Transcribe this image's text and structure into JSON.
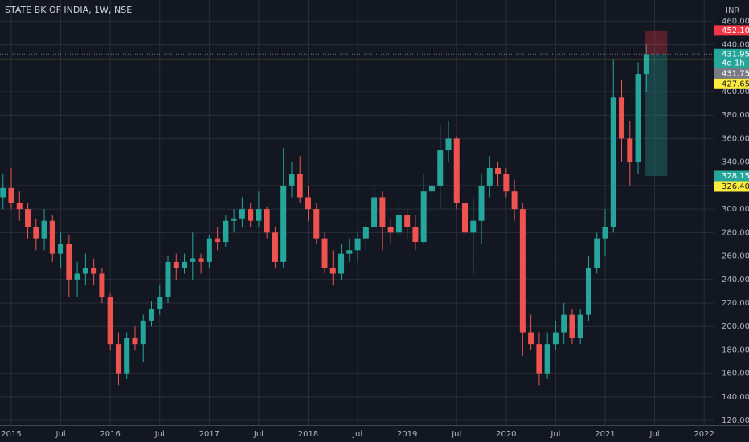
{
  "chart_data": {
    "type": "candlestick",
    "title": "STATE BK OF INDIA, 1W, NSE",
    "currency": "INR",
    "x": [
      "2014-12",
      "2015-01",
      "2015-02",
      "2015-03",
      "2015-04",
      "2015-05",
      "2015-06",
      "2015-07",
      "2015-08",
      "2015-09",
      "2015-10",
      "2015-11",
      "2015-12",
      "2016-01",
      "2016-02",
      "2016-03",
      "2016-04",
      "2016-05",
      "2016-06",
      "2016-07",
      "2016-08",
      "2016-09",
      "2016-10",
      "2016-11",
      "2016-12",
      "2017-01",
      "2017-02",
      "2017-03",
      "2017-04",
      "2017-05",
      "2017-06",
      "2017-07",
      "2017-08",
      "2017-09",
      "2017-10",
      "2017-11",
      "2017-12",
      "2018-01",
      "2018-02",
      "2018-03",
      "2018-04",
      "2018-05",
      "2018-06",
      "2018-07",
      "2018-08",
      "2018-09",
      "2018-10",
      "2018-11",
      "2018-12",
      "2019-01",
      "2019-02",
      "2019-03",
      "2019-04",
      "2019-05",
      "2019-06",
      "2019-07",
      "2019-08",
      "2019-09",
      "2019-10",
      "2019-11",
      "2019-12",
      "2020-01",
      "2020-02",
      "2020-03",
      "2020-04",
      "2020-05",
      "2020-06",
      "2020-07",
      "2020-08",
      "2020-09",
      "2020-10",
      "2020-11",
      "2020-12",
      "2021-01",
      "2021-02",
      "2021-03",
      "2021-04",
      "2021-05",
      "2021-06"
    ],
    "open": [
      310,
      318,
      305,
      300,
      285,
      275,
      290,
      262,
      270,
      240,
      245,
      250,
      245,
      225,
      185,
      160,
      190,
      185,
      205,
      215,
      225,
      255,
      250,
      255,
      258,
      255,
      275,
      272,
      290,
      292,
      300,
      290,
      300,
      280,
      255,
      320,
      330,
      310,
      300,
      275,
      250,
      245,
      262,
      265,
      275,
      285,
      310,
      285,
      280,
      295,
      285,
      272,
      315,
      320,
      350,
      360,
      305,
      280,
      290,
      320,
      335,
      330,
      315,
      300,
      195,
      185,
      160,
      185,
      195,
      210,
      190,
      210,
      250,
      275,
      285,
      395,
      360,
      340,
      415
    ],
    "high": [
      330,
      335,
      315,
      305,
      292,
      300,
      295,
      280,
      278,
      255,
      262,
      258,
      250,
      228,
      195,
      195,
      200,
      210,
      222,
      235,
      260,
      262,
      262,
      280,
      262,
      278,
      285,
      295,
      300,
      310,
      305,
      315,
      302,
      285,
      352,
      340,
      345,
      320,
      305,
      280,
      265,
      270,
      275,
      280,
      290,
      320,
      315,
      292,
      305,
      300,
      295,
      330,
      335,
      372,
      375,
      362,
      310,
      310,
      330,
      345,
      340,
      335,
      325,
      305,
      210,
      195,
      195,
      205,
      220,
      215,
      215,
      260,
      280,
      300,
      427,
      410,
      375,
      425,
      440
    ],
    "low": [
      300,
      300,
      290,
      275,
      265,
      265,
      255,
      250,
      225,
      225,
      235,
      235,
      220,
      180,
      150,
      155,
      180,
      170,
      200,
      210,
      220,
      240,
      245,
      240,
      245,
      250,
      265,
      268,
      280,
      285,
      285,
      285,
      275,
      250,
      250,
      310,
      305,
      290,
      270,
      245,
      235,
      240,
      255,
      255,
      265,
      285,
      265,
      270,
      275,
      275,
      265,
      270,
      305,
      300,
      340,
      300,
      265,
      245,
      270,
      310,
      320,
      310,
      290,
      175,
      180,
      150,
      155,
      180,
      185,
      185,
      185,
      205,
      245,
      260,
      280,
      340,
      320,
      330,
      400
    ],
    "close": [
      318,
      305,
      300,
      285,
      275,
      290,
      262,
      270,
      240,
      245,
      250,
      245,
      225,
      185,
      160,
      190,
      185,
      205,
      215,
      225,
      255,
      250,
      255,
      258,
      255,
      275,
      272,
      290,
      292,
      300,
      290,
      300,
      280,
      255,
      320,
      330,
      310,
      300,
      275,
      250,
      245,
      262,
      265,
      275,
      285,
      310,
      285,
      280,
      295,
      285,
      272,
      315,
      320,
      350,
      360,
      305,
      280,
      290,
      320,
      335,
      330,
      315,
      300,
      195,
      185,
      160,
      185,
      195,
      210,
      190,
      210,
      250,
      275,
      285,
      395,
      360,
      340,
      415,
      431.75
    ],
    "up_color": "#26a69a",
    "down_color": "#ef5350",
    "ylim": [
      116,
      478
    ],
    "yticks": [
      {
        "value": 120,
        "label": "120.00"
      },
      {
        "value": 140,
        "label": "140.00"
      },
      {
        "value": 160,
        "label": "160.00"
      },
      {
        "value": 180,
        "label": "180.00"
      },
      {
        "value": 200,
        "label": "200.00"
      },
      {
        "value": 220,
        "label": "220.00"
      },
      {
        "value": 240,
        "label": "240.00"
      },
      {
        "value": 260,
        "label": "260.00"
      },
      {
        "value": 280,
        "label": "280.00"
      },
      {
        "value": 300,
        "label": "300.00"
      },
      {
        "value": 320,
        "label": "320.00"
      },
      {
        "value": 340,
        "label": "340.00"
      },
      {
        "value": 360,
        "label": "360.00"
      },
      {
        "value": 380,
        "label": "380.00"
      },
      {
        "value": 400,
        "label": "400.00"
      },
      {
        "value": 420,
        "label": "420.00"
      },
      {
        "value": 440,
        "label": "440.00"
      },
      {
        "value": 460,
        "label": "460.00"
      }
    ],
    "xticks": [
      {
        "value": "2015-01",
        "label": "2015"
      },
      {
        "value": "2015-07",
        "label": "Jul"
      },
      {
        "value": "2016-01",
        "label": "2016"
      },
      {
        "value": "2016-07",
        "label": "Jul"
      },
      {
        "value": "2017-01",
        "label": "2017"
      },
      {
        "value": "2017-07",
        "label": "Jul"
      },
      {
        "value": "2018-01",
        "label": "2018"
      },
      {
        "value": "2018-07",
        "label": "Jul"
      },
      {
        "value": "2019-01",
        "label": "2019"
      },
      {
        "value": "2019-07",
        "label": "Jul"
      },
      {
        "value": "2020-01",
        "label": "2020"
      },
      {
        "value": "2020-07",
        "label": "Jul"
      },
      {
        "value": "2021-01",
        "label": "2021"
      },
      {
        "value": "2021-07",
        "label": "Jul"
      },
      {
        "value": "2022-01",
        "label": "2022"
      }
    ],
    "grid": true,
    "horizontal_lines": [
      {
        "value": 427.65,
        "color": "#ffeb3b"
      },
      {
        "value": 326.4,
        "color": "#ffeb3b"
      }
    ],
    "position": {
      "target": 452.1,
      "entry": 431.95,
      "stop": 328.15
    },
    "countdown": "4d 1h",
    "price_labels": [
      {
        "value": 452.1,
        "label": "452.10",
        "color": "#f23645"
      },
      {
        "value": 431.95,
        "label": "431.95",
        "color": "#26a69a"
      },
      {
        "value": 431.75,
        "label": "431.75",
        "color": "#787b86"
      },
      {
        "value": 427.65,
        "label": "427.65",
        "color": "#ffeb3b"
      },
      {
        "value": 328.15,
        "label": "328.15",
        "color": "#26a69a"
      },
      {
        "value": 326.4,
        "label": "326.40",
        "color": "#ffeb3b"
      }
    ]
  }
}
